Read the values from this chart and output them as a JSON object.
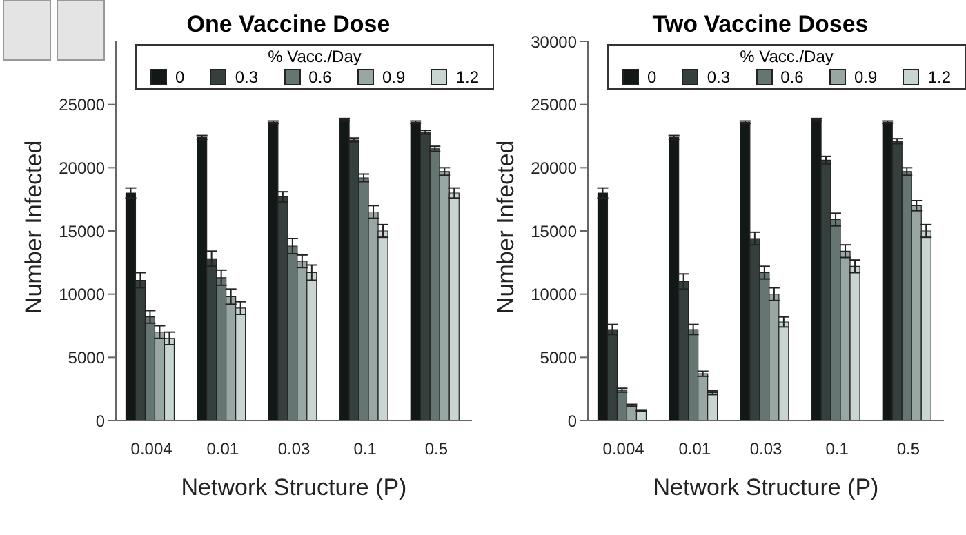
{
  "chart_data": [
    {
      "type": "bar",
      "title": "One Vaccine Dose",
      "xlabel": "Network Structure (P)",
      "ylabel": "Number Infected",
      "legend_title": "% Vacc./Day",
      "legend": "top",
      "categories": [
        "0.004",
        "0.01",
        "0.03",
        "0.1",
        "0.5"
      ],
      "ylim": [
        0,
        30000
      ],
      "yticks": [
        0,
        5000,
        10000,
        15000,
        20000,
        25000
      ],
      "grid": false,
      "series": [
        {
          "name": "0",
          "color": "#111816",
          "values": [
            18000,
            22400,
            23600,
            23800,
            23600
          ],
          "errors": [
            400,
            150,
            100,
            100,
            100
          ]
        },
        {
          "name": "0.3",
          "color": "#35403e",
          "values": [
            11100,
            12800,
            17700,
            22200,
            22800
          ],
          "errors": [
            600,
            600,
            400,
            150,
            150
          ]
        },
        {
          "name": "0.6",
          "color": "#657572",
          "values": [
            8200,
            11300,
            13800,
            19200,
            21500
          ],
          "errors": [
            500,
            600,
            600,
            300,
            200
          ]
        },
        {
          "name": "0.9",
          "color": "#98a7a4",
          "values": [
            7000,
            9800,
            12600,
            16500,
            19700
          ],
          "errors": [
            500,
            600,
            500,
            500,
            300
          ]
        },
        {
          "name": "1.2",
          "color": "#c9d5d0",
          "values": [
            6500,
            8900,
            11700,
            15000,
            18000
          ],
          "errors": [
            500,
            500,
            600,
            500,
            400
          ]
        }
      ]
    },
    {
      "type": "bar",
      "title": "Two Vaccine Doses",
      "xlabel": "Network Structure (P)",
      "ylabel": "Number Infected",
      "legend_title": "% Vacc./Day",
      "legend": "top",
      "categories": [
        "0.004",
        "0.01",
        "0.03",
        "0.1",
        "0.5"
      ],
      "ylim": [
        0,
        30000
      ],
      "yticks": [
        0,
        5000,
        10000,
        15000,
        20000,
        25000,
        30000
      ],
      "grid": false,
      "series": [
        {
          "name": "0",
          "color": "#111816",
          "values": [
            18000,
            22400,
            23600,
            23800,
            23600
          ],
          "errors": [
            400,
            150,
            100,
            100,
            100
          ]
        },
        {
          "name": "0.3",
          "color": "#35403e",
          "values": [
            7200,
            11000,
            14400,
            20600,
            22100
          ],
          "errors": [
            400,
            600,
            500,
            300,
            200
          ]
        },
        {
          "name": "0.6",
          "color": "#657572",
          "values": [
            2400,
            7200,
            11700,
            15900,
            19700
          ],
          "errors": [
            150,
            400,
            500,
            500,
            300
          ]
        },
        {
          "name": "0.9",
          "color": "#98a7a4",
          "values": [
            1200,
            3700,
            10000,
            13400,
            17000
          ],
          "errors": [
            80,
            200,
            500,
            500,
            400
          ]
        },
        {
          "name": "1.2",
          "color": "#c9d5d0",
          "values": [
            800,
            2200,
            7800,
            12200,
            15000
          ],
          "errors": [
            50,
            150,
            400,
            500,
            500
          ]
        }
      ]
    }
  ]
}
